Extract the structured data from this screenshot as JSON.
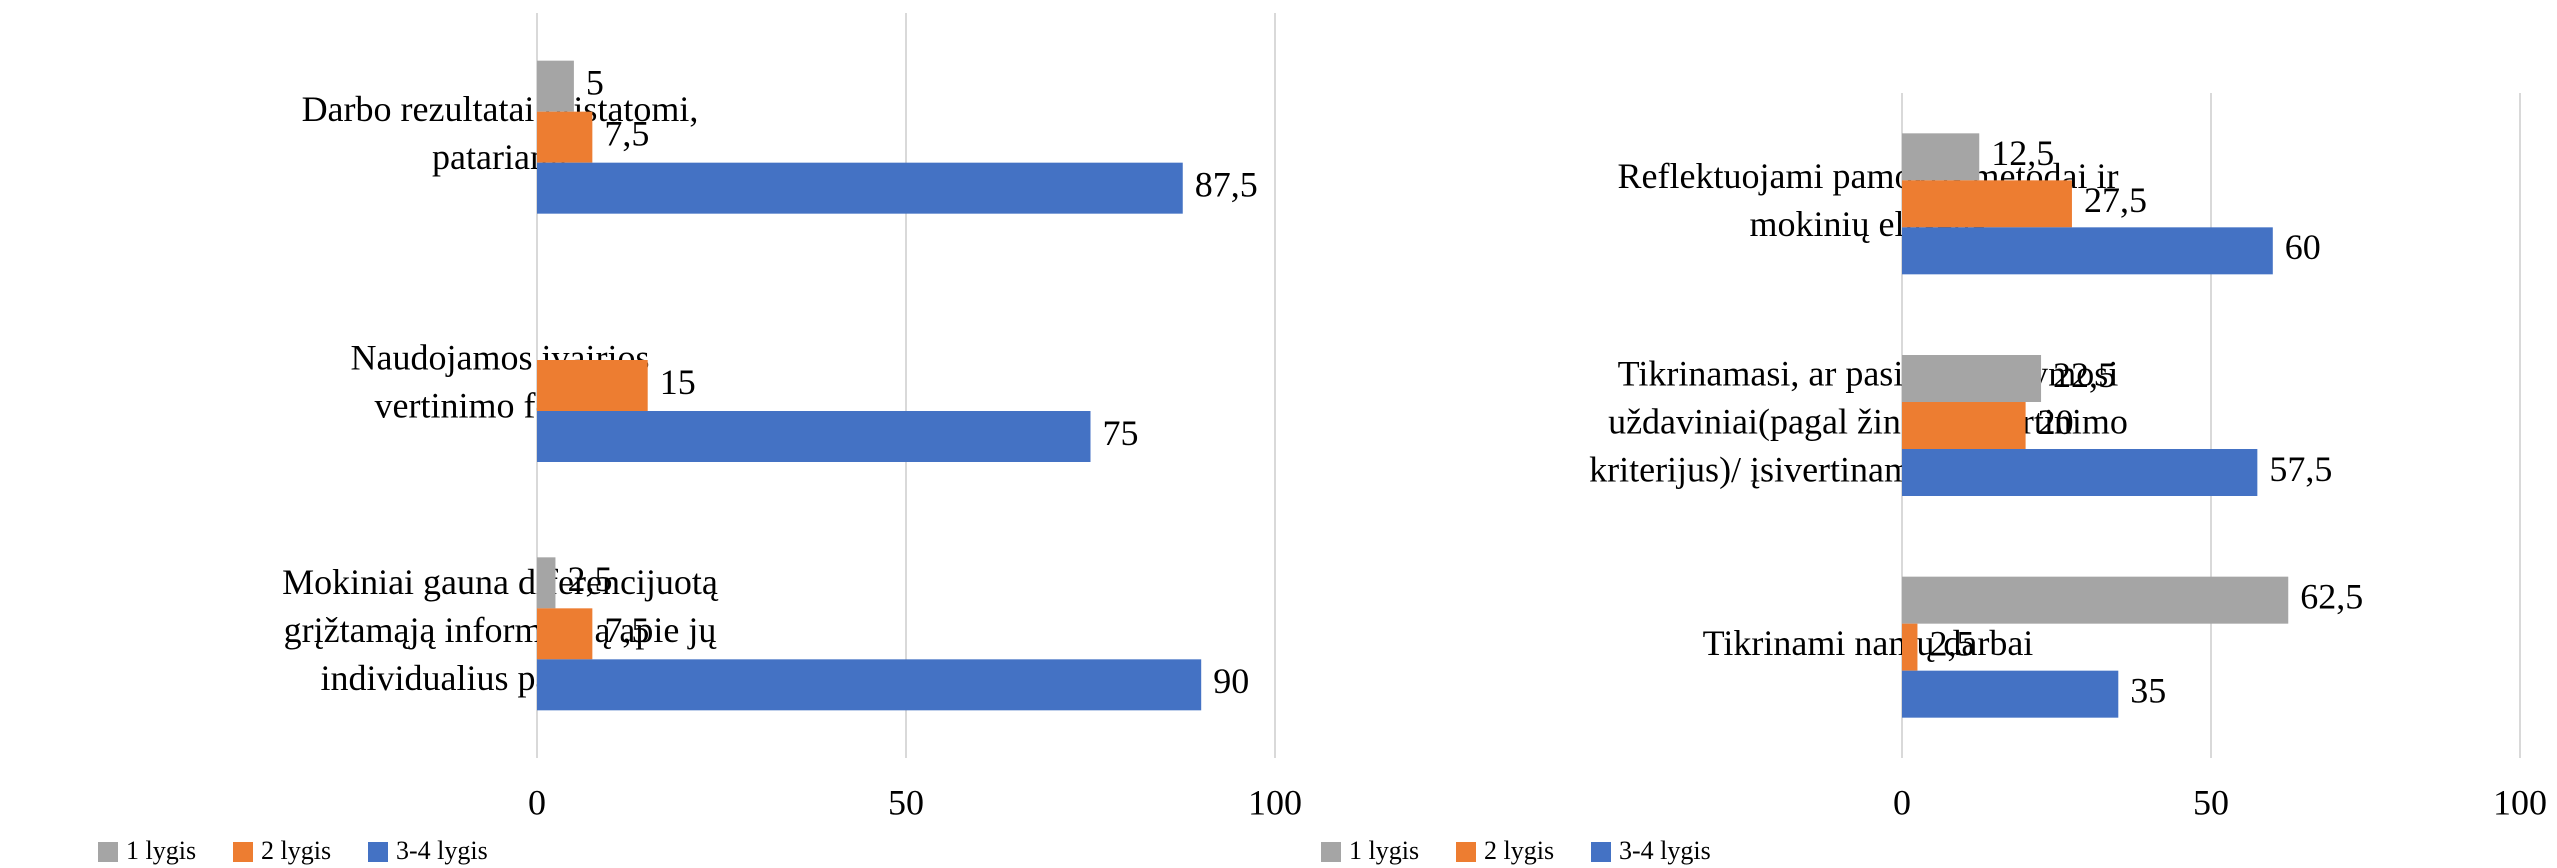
{
  "chart_data": [
    {
      "type": "bar",
      "orientation": "horizontal",
      "categories": [
        "Darbo rezultatai pristatomi,\npatariami",
        "Naudojamos įvairios\nvertinimo formos",
        "Mokiniai gauna diferencijuotą\ngrįžtamąją informaciją apie jų\nindividualius pasiekimus"
      ],
      "series": [
        {
          "name": "1 lygis",
          "color": "#a5a5a5",
          "values": [
            5,
            null,
            2.5
          ],
          "value_labels": [
            "5",
            null,
            "2,5"
          ]
        },
        {
          "name": "2 lygis",
          "color": "#ed7d31",
          "values": [
            7.5,
            15,
            7.5
          ],
          "value_labels": [
            "7,5",
            "15",
            "7,5"
          ]
        },
        {
          "name": "3-4 lygis",
          "color": "#4472c4",
          "values": [
            87.5,
            75,
            90
          ],
          "value_labels": [
            "87,5",
            "75",
            "90"
          ]
        }
      ],
      "xlim": [
        0,
        100
      ],
      "xticks": [
        0,
        50,
        100
      ],
      "grid": true,
      "legend": "bottom"
    },
    {
      "type": "bar",
      "orientation": "horizontal",
      "categories": [
        "Reflektuojami pamokos metodai ir\nmokinių elgsena",
        "Tikrinamasi, ar pasiekti mokymosi\nuždaviniai(pagal žinomus vertinimo\nkriterijus)/ įsivertinama/ reflektuojama",
        "Tikrinami namų darbai"
      ],
      "series": [
        {
          "name": "1 lygis",
          "color": "#a5a5a5",
          "values": [
            12.5,
            22.5,
            62.5
          ],
          "value_labels": [
            "12,5",
            "22,5",
            "62,5"
          ]
        },
        {
          "name": "2 lygis",
          "color": "#ed7d31",
          "values": [
            27.5,
            20,
            2.5
          ],
          "value_labels": [
            "27,5",
            "20",
            "2,5"
          ]
        },
        {
          "name": "3-4 lygis",
          "color": "#4472c4",
          "values": [
            60,
            57.5,
            35
          ],
          "value_labels": [
            "60",
            "57,5",
            "35"
          ]
        }
      ],
      "xlim": [
        0,
        100
      ],
      "xticks": [
        0,
        50,
        100
      ],
      "grid": true,
      "legend": "bottom"
    }
  ]
}
